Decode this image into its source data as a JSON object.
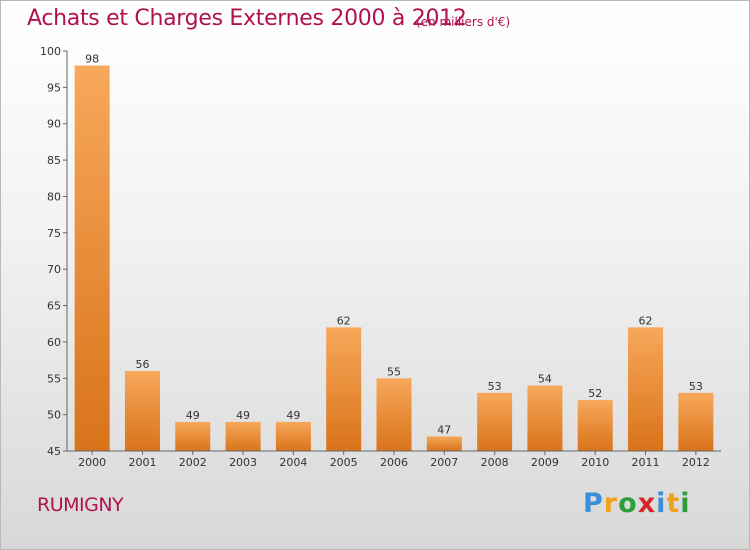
{
  "header": {
    "title": "Achats et Charges Externes 2000 à 2012",
    "unit": "(en milliers d'€)"
  },
  "footer": {
    "place": "RUMIGNY",
    "brand": [
      "P",
      "r",
      "o",
      "x",
      "i",
      "t",
      "i"
    ],
    "brand_colors": [
      "#3b8fd8",
      "#f2a21a",
      "#2d9e3a",
      "#d9252a",
      "#3b8fd8",
      "#f2a21a",
      "#2d9e3a"
    ]
  },
  "chart_data": {
    "type": "bar",
    "title": "Achats et Charges Externes 2000 à 2012",
    "subtitle": "(en milliers d'€)",
    "xlabel": "",
    "ylabel": "",
    "categories": [
      "2000",
      "2001",
      "2002",
      "2003",
      "2004",
      "2005",
      "2006",
      "2007",
      "2008",
      "2009",
      "2010",
      "2011",
      "2012"
    ],
    "values": [
      98,
      56,
      49,
      49,
      49,
      62,
      55,
      47,
      53,
      54,
      52,
      62,
      53
    ],
    "ylim": [
      45,
      100
    ],
    "yticks": [
      45,
      50,
      55,
      60,
      65,
      70,
      75,
      80,
      85,
      90,
      95,
      100
    ],
    "grid": false,
    "colors": {
      "bar_top": "#f7a85a",
      "bar_bottom": "#d9731a",
      "axis": "#666666"
    }
  }
}
